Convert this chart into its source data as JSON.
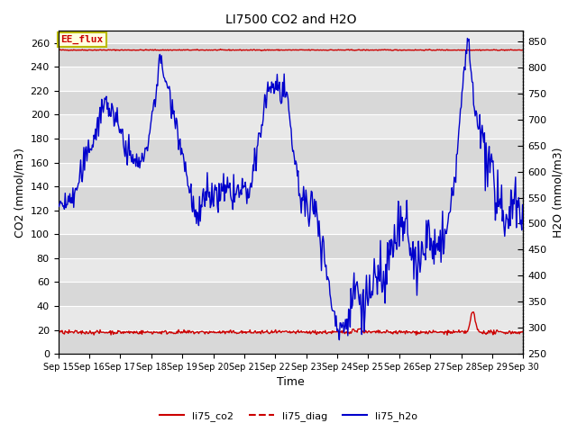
{
  "title": "LI7500 CO2 and H2O",
  "xlabel": "Time",
  "ylabel_left": "CO2 (mmol/m3)",
  "ylabel_right": "H2O (mmol/m3)",
  "ylim_left": [
    0,
    270
  ],
  "ylim_right": [
    250,
    870
  ],
  "yticks_left": [
    0,
    20,
    40,
    60,
    80,
    100,
    120,
    140,
    160,
    180,
    200,
    220,
    240,
    260
  ],
  "yticks_right": [
    250,
    300,
    350,
    400,
    450,
    500,
    550,
    600,
    650,
    700,
    750,
    800,
    850
  ],
  "xtick_labels": [
    "Sep 15",
    "Sep 16",
    "Sep 17",
    "Sep 18",
    "Sep 19",
    "Sep 20",
    "Sep 21",
    "Sep 22",
    "Sep 23",
    "Sep 24",
    "Sep 25",
    "Sep 26",
    "Sep 27",
    "Sep 28",
    "Sep 29",
    "Sep 30"
  ],
  "color_co2": "#cc0000",
  "color_diag": "#cc0000",
  "color_h2o": "#0000cc",
  "bg_color_dark": "#d8d8d8",
  "bg_color_light": "#e8e8e8",
  "annotation_text": "EE_flux",
  "annotation_color": "#cc0000",
  "annotation_bg": "#ffffe0",
  "annotation_border": "#bbbb00",
  "n_points": 600,
  "seed": 42
}
